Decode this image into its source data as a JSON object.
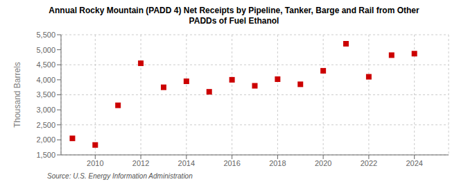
{
  "chart_data": {
    "type": "scatter",
    "title": "Annual Rocky Mountain (PADD 4) Net Receipts by Pipeline, Tanker, Barge and Rail from Other\nPADDs of Fuel Ethanol",
    "ylabel": "Thousand Barrels",
    "annotations": [
      "Source: U.S. Energy Information Administration"
    ],
    "x": [
      2009,
      2010,
      2011,
      2012,
      2013,
      2014,
      2015,
      2016,
      2017,
      2018,
      2019,
      2020,
      2021,
      2022,
      2023,
      2024
    ],
    "values": [
      2050,
      1830,
      3150,
      4550,
      3750,
      3950,
      3600,
      4000,
      3800,
      4020,
      3850,
      4300,
      5200,
      4100,
      4820,
      4870
    ],
    "color": "#cc0000",
    "marker": "square",
    "xlim": [
      2008.5,
      2025.5
    ],
    "xticks": [
      2010,
      2012,
      2014,
      2016,
      2018,
      2020,
      2022,
      2024
    ],
    "ylim": [
      1500,
      5500
    ],
    "yticks": [
      {
        "value": 1500,
        "label": "1,500"
      },
      {
        "value": 2000,
        "label": "2,000"
      },
      {
        "value": 2500,
        "label": "2,500"
      },
      {
        "value": 3000,
        "label": "3,000"
      },
      {
        "value": 3500,
        "label": "3,500"
      },
      {
        "value": 4000,
        "label": "4,000"
      },
      {
        "value": 4500,
        "label": "4,500"
      },
      {
        "value": 5000,
        "label": "5,000"
      },
      {
        "value": 5500,
        "label": "5,500"
      }
    ],
    "grid": true
  }
}
